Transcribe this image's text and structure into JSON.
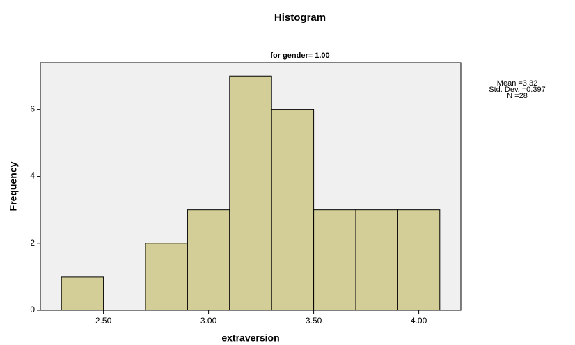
{
  "chart_data": {
    "type": "histogram",
    "title": "Histogram",
    "subtitle": "for gender= 1.00",
    "x_label": "extraversion",
    "y_label": "Frequency",
    "bins": [
      2.3,
      2.5,
      2.7,
      2.9,
      3.1,
      3.3,
      3.5,
      3.7,
      3.9,
      4.1
    ],
    "counts": [
      1,
      0,
      2,
      3,
      7,
      6,
      3,
      3,
      3
    ],
    "color": "#d3ce97",
    "xlim": [
      2.2,
      4.2
    ],
    "xticks": [
      {
        "value": 2.5,
        "label": "2.50"
      },
      {
        "value": 3,
        "label": "3.00"
      },
      {
        "value": 3.5,
        "label": "3.50"
      },
      {
        "value": 4,
        "label": "4.00"
      }
    ],
    "ylim": [
      0,
      7.4
    ],
    "yticks": [
      0,
      2,
      4,
      6
    ],
    "annotations": [
      "Mean =3.32",
      "Std. Dev. =0.397",
      "N =28"
    ]
  }
}
